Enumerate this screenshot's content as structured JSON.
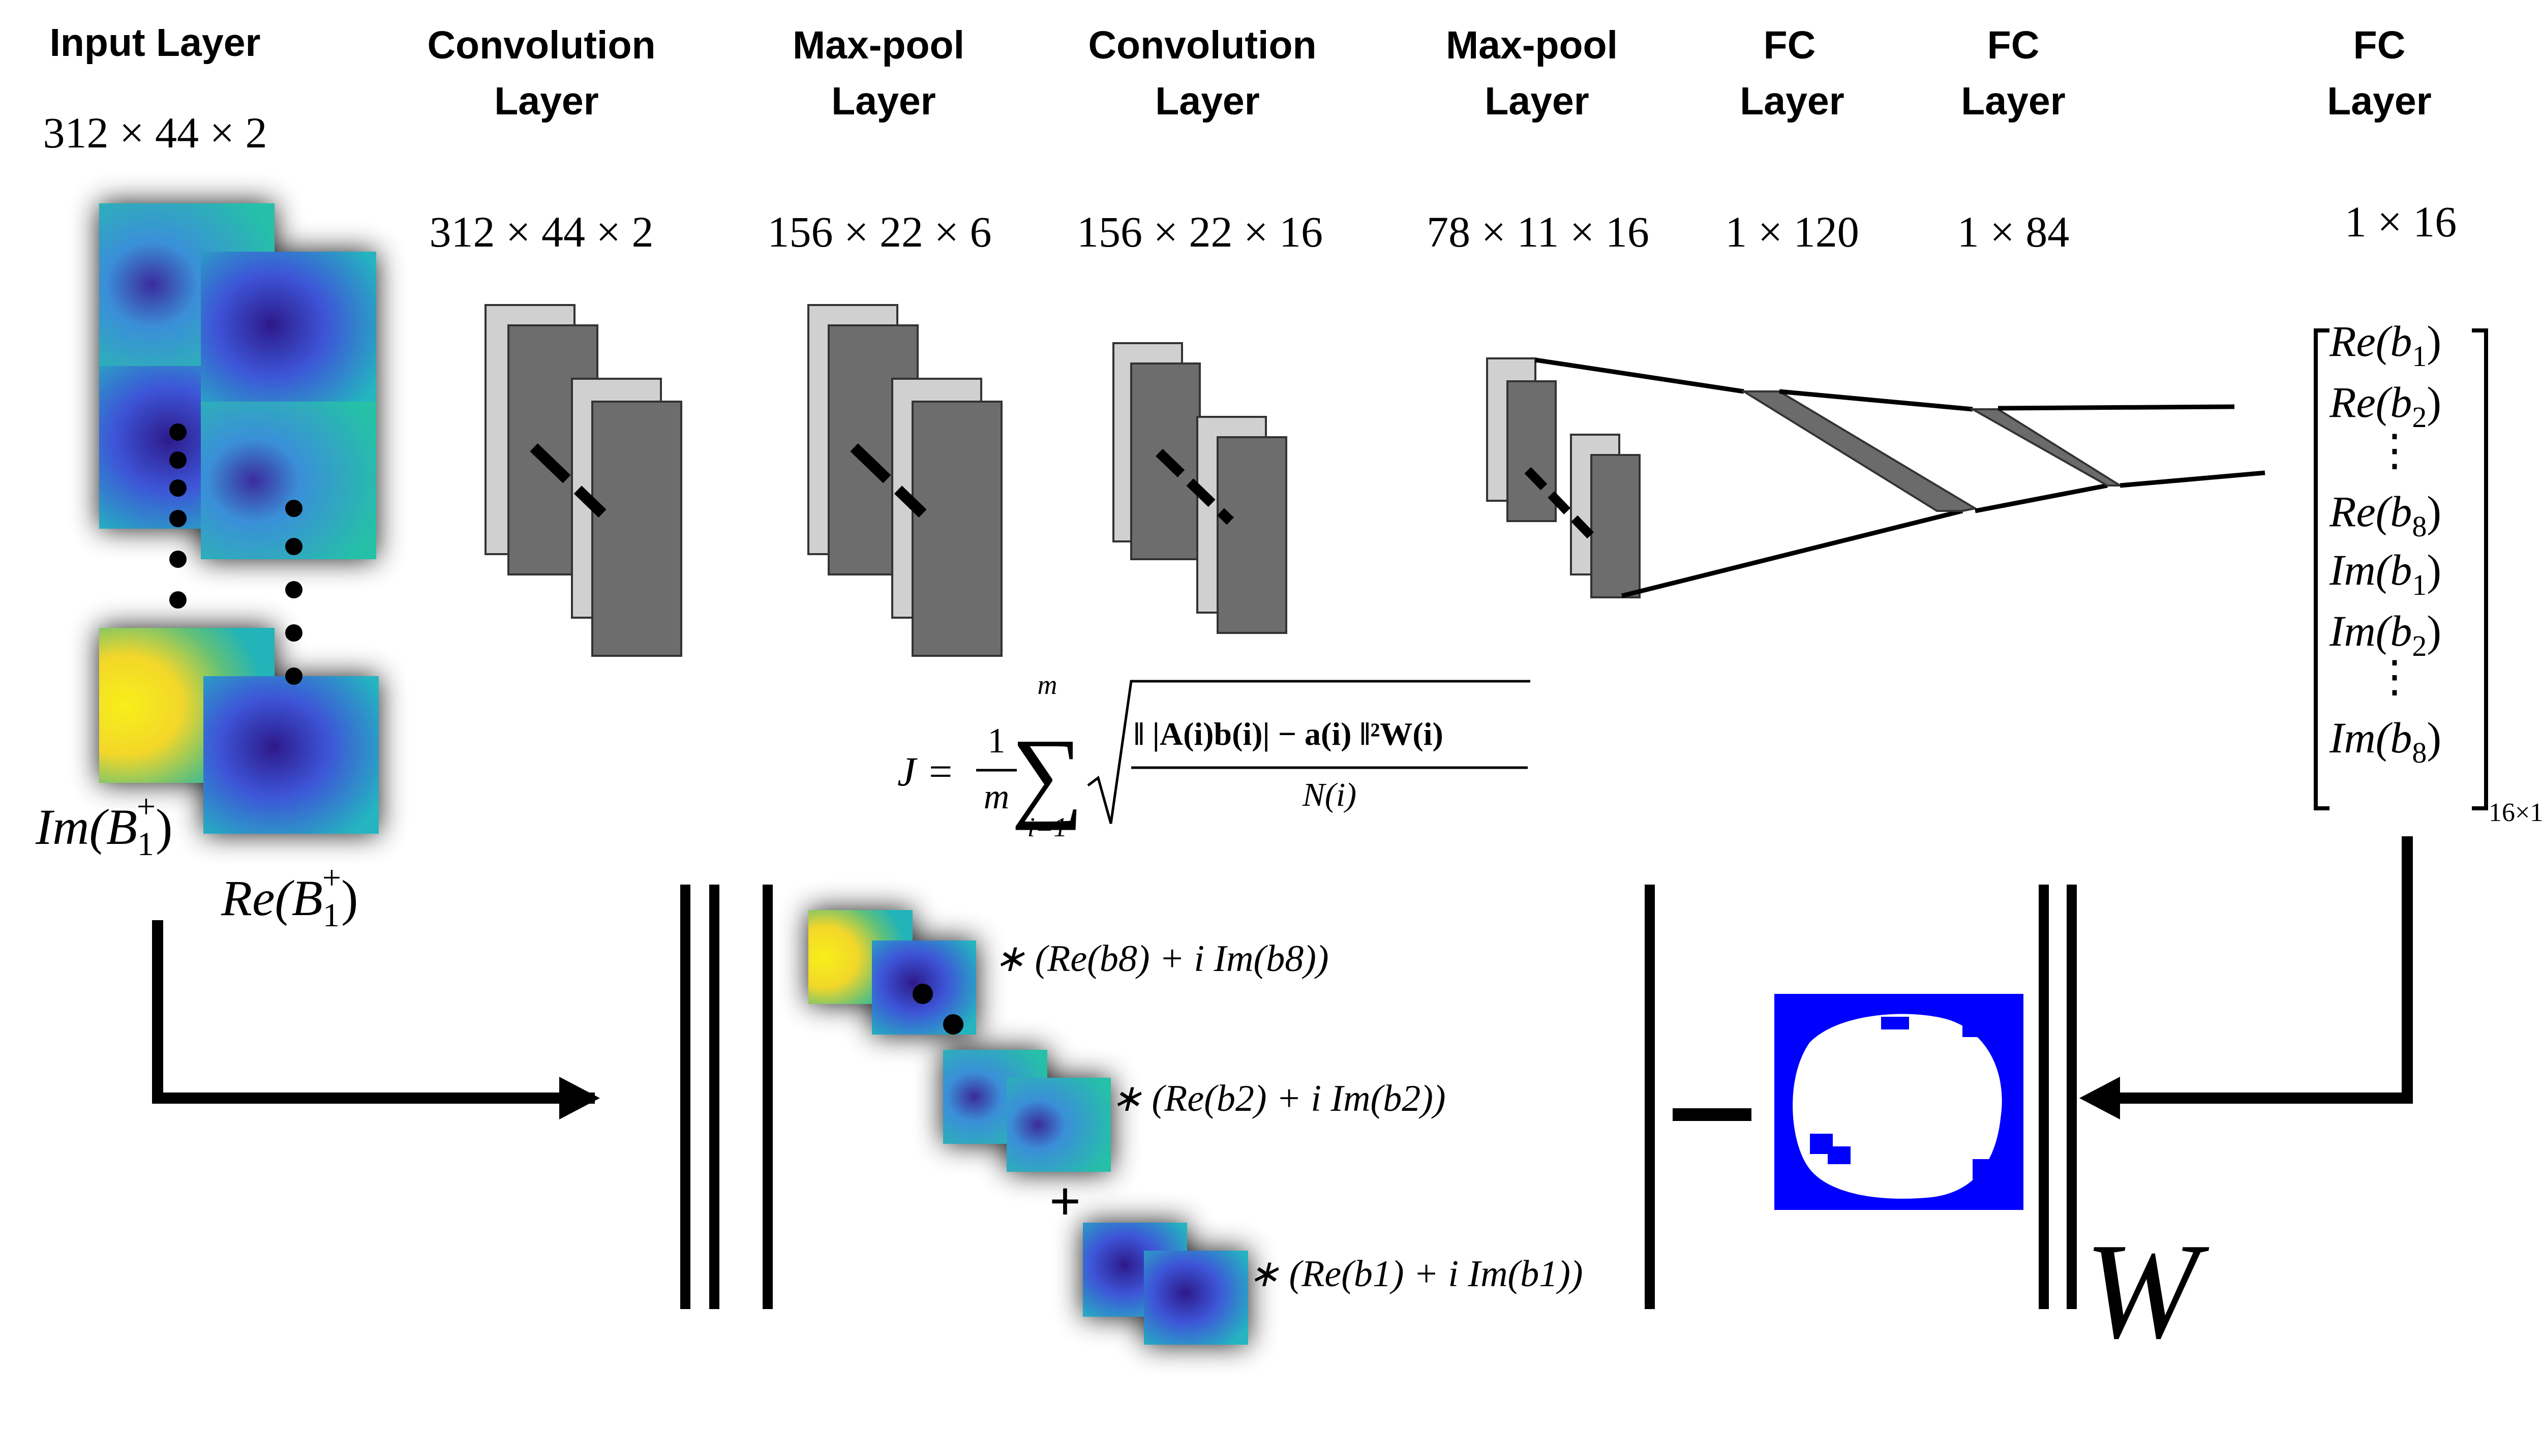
{
  "headers": {
    "input": "Input Layer",
    "conv1": [
      "Convolution",
      "Layer"
    ],
    "pool1": [
      "Max-pool",
      "Layer"
    ],
    "conv2": [
      "Convolution",
      "Layer"
    ],
    "pool2": [
      "Max-pool",
      "Layer"
    ],
    "fc1": [
      "FC",
      "Layer"
    ],
    "fc2": [
      "FC",
      "Layer"
    ],
    "fc3": [
      "FC",
      "Layer"
    ]
  },
  "dimensions": {
    "input": "312 × 44 × 2",
    "conv1": "312 × 44 × 2",
    "pool1": "156 × 22 × 6",
    "conv2": "156 × 22 × 16",
    "pool2": "78 × 11 × 16",
    "fc1": "1 × 120",
    "fc2": "1 × 84",
    "fc3": "1 × 16"
  },
  "input_labels": {
    "imag": "Im(B",
    "real": "Re(B",
    "sub": "1",
    "sup": "+",
    "close": ")"
  },
  "output_vector": {
    "entries": [
      "Re(b",
      "Re(b",
      "Re(b",
      "Im(b",
      "Im(b",
      "Im(b"
    ],
    "subscripts": [
      "1",
      "2",
      "8",
      "1",
      "2",
      "8"
    ],
    "size": "16×1",
    "vdots": "⋮"
  },
  "loss": {
    "lhs": "J =",
    "frac_num": "1",
    "frac_den": "m",
    "sum_top": "m",
    "sum_bottom": "i=1",
    "numerator": "‖ |A(i)b(i)| − a(i) ‖²W(i)",
    "denominator": "N(i)"
  },
  "combination_terms": [
    "∗ (Re(b8) + i Im(b8))",
    "∗ (Re(b2) + i Im(b2))",
    "∗ (Re(b1) + i Im(b1))"
  ],
  "operators": {
    "plus": "+",
    "minus": "−",
    "weight": "W"
  },
  "colors": {
    "layer_dark": "#6d6d6d",
    "layer_light": "#d0d0d0",
    "fc_plane": "#6b6b6b",
    "mask_blue": "#0000ff",
    "map_teal": "#22b8b0",
    "map_blue": "#3a3aa0",
    "map_yellow": "#f4e81c"
  }
}
